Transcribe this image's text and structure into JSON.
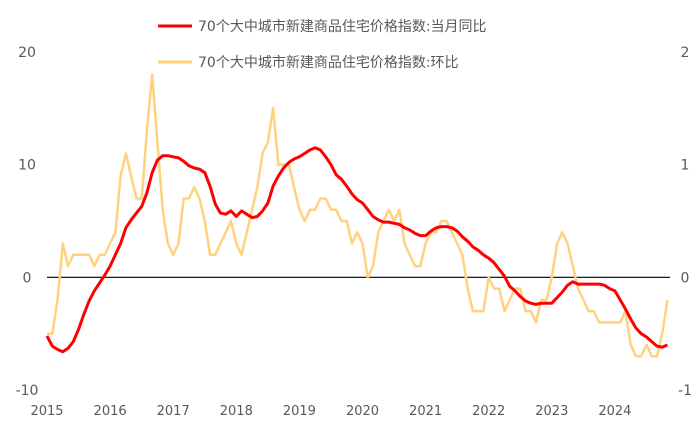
{
  "chart_data": {
    "type": "line",
    "title": "",
    "x_start": "2015-01",
    "x_frequency": "monthly",
    "x_tick_labels": [
      "2015",
      "2016",
      "2017",
      "2018",
      "2019",
      "2020",
      "2021",
      "2022",
      "2023",
      "2024"
    ],
    "left_axis": {
      "ylim": [
        -10,
        20
      ],
      "ticks": [
        "20",
        "10",
        "0",
        "-10"
      ]
    },
    "right_axis": {
      "ylim": [
        -1,
        2
      ],
      "ticks": [
        "2",
        "1",
        "0",
        "-1"
      ]
    },
    "legend_position": "top",
    "grid": false,
    "zero_line_color": "#000000",
    "series": [
      {
        "name": "70个大中城市新建商品住宅价格指数:当月同比",
        "axis": "left",
        "color": "#FF0000",
        "values": [
          -5.2,
          -6.1,
          -6.4,
          -6.6,
          -6.3,
          -5.7,
          -4.6,
          -3.3,
          -2.1,
          -1.2,
          -0.5,
          0.2,
          1.0,
          2.0,
          3.0,
          4.4,
          5.1,
          5.7,
          6.3,
          7.5,
          9.3,
          10.4,
          10.8,
          10.8,
          10.7,
          10.6,
          10.3,
          9.9,
          9.7,
          9.6,
          9.3,
          8.1,
          6.5,
          5.7,
          5.6,
          5.9,
          5.4,
          5.9,
          5.6,
          5.3,
          5.4,
          5.9,
          6.6,
          8.1,
          9.0,
          9.7,
          10.2,
          10.5,
          10.7,
          11.0,
          11.3,
          11.5,
          11.3,
          10.7,
          10.0,
          9.1,
          8.7,
          8.1,
          7.4,
          6.9,
          6.6,
          6.0,
          5.4,
          5.1,
          4.9,
          4.9,
          4.8,
          4.7,
          4.4,
          4.2,
          3.9,
          3.7,
          3.7,
          4.1,
          4.4,
          4.5,
          4.5,
          4.4,
          4.1,
          3.6,
          3.2,
          2.7,
          2.4,
          2.0,
          1.7,
          1.3,
          0.7,
          0.1,
          -0.8,
          -1.2,
          -1.7,
          -2.1,
          -2.3,
          -2.4,
          -2.3,
          -2.3,
          -2.3,
          -1.8,
          -1.3,
          -0.7,
          -0.4,
          -0.6,
          -0.6,
          -0.6,
          -0.6,
          -0.6,
          -0.7,
          -1.0,
          -1.2,
          -2.0,
          -2.8,
          -3.7,
          -4.5,
          -5.0,
          -5.3,
          -5.7,
          -6.1,
          -6.2,
          -6.0
        ]
      },
      {
        "name": "70个大中城市新建商品住宅价格指数:环比",
        "axis": "right",
        "color": "#FFD27F",
        "values": [
          -0.5,
          -0.5,
          -0.2,
          0.3,
          0.1,
          0.2,
          0.2,
          0.2,
          0.2,
          0.1,
          0.2,
          0.2,
          0.3,
          0.4,
          0.9,
          1.1,
          0.9,
          0.7,
          0.7,
          1.3,
          1.8,
          1.2,
          0.6,
          0.3,
          0.2,
          0.3,
          0.7,
          0.7,
          0.8,
          0.7,
          0.5,
          0.2,
          0.2,
          0.3,
          0.4,
          0.5,
          0.3,
          0.2,
          0.4,
          0.6,
          0.8,
          1.1,
          1.2,
          1.5,
          1.0,
          1.0,
          1.0,
          0.8,
          0.6,
          0.5,
          0.6,
          0.6,
          0.7,
          0.7,
          0.6,
          0.6,
          0.5,
          0.5,
          0.3,
          0.4,
          0.3,
          0.0,
          0.1,
          0.4,
          0.5,
          0.6,
          0.5,
          0.6,
          0.3,
          0.2,
          0.1,
          0.1,
          0.3,
          0.4,
          0.4,
          0.5,
          0.5,
          0.4,
          0.3,
          0.2,
          -0.1,
          -0.3,
          -0.3,
          -0.3,
          0.0,
          -0.1,
          -0.1,
          -0.3,
          -0.2,
          -0.1,
          -0.1,
          -0.3,
          -0.3,
          -0.4,
          -0.2,
          -0.2,
          0.0,
          0.3,
          0.4,
          0.3,
          0.1,
          -0.1,
          -0.2,
          -0.3,
          -0.3,
          -0.4,
          -0.4,
          -0.4,
          -0.4,
          -0.4,
          -0.3,
          -0.6,
          -0.7,
          -0.7,
          -0.6,
          -0.7,
          -0.7,
          -0.5,
          -0.2
        ]
      }
    ]
  }
}
